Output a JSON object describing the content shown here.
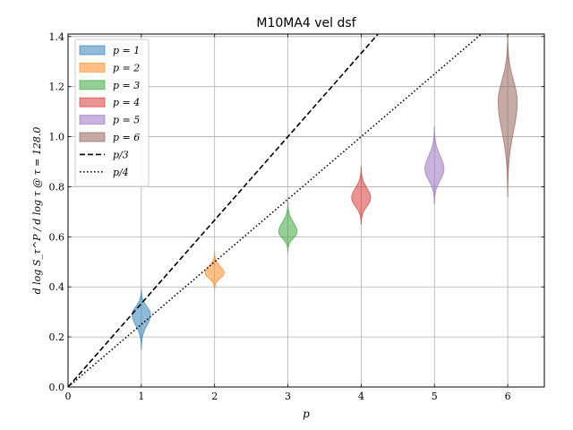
{
  "chart_data": {
    "type": "violin",
    "title": "M10MA4 vel dsf",
    "xlabel": "p",
    "ylabel": "d log S_τ^P / d log τ @ τ = 128.0",
    "xlim": [
      0,
      6.5
    ],
    "ylim": [
      0,
      1.41
    ],
    "xticks": [
      "0",
      "1",
      "2",
      "3",
      "4",
      "5",
      "6"
    ],
    "yticks": [
      "0.0",
      "0.2",
      "0.4",
      "0.6",
      "0.8",
      "1.0",
      "1.2",
      "1.4"
    ],
    "grid": true,
    "legend_position": "top-left",
    "series": [
      {
        "name": "p = 1",
        "x": 1,
        "center": 0.29,
        "min": 0.15,
        "max": 0.39,
        "width": 0.25,
        "color": "#1f77b4"
      },
      {
        "name": "p = 2",
        "x": 2,
        "center": 0.455,
        "min": 0.39,
        "max": 0.54,
        "width": 0.26,
        "color": "#ff7f0e"
      },
      {
        "name": "p = 3",
        "x": 3,
        "center": 0.62,
        "min": 0.54,
        "max": 0.74,
        "width": 0.25,
        "color": "#2ca02c"
      },
      {
        "name": "p = 4",
        "x": 4,
        "center": 0.755,
        "min": 0.65,
        "max": 0.88,
        "width": 0.26,
        "color": "#d62728"
      },
      {
        "name": "p = 5",
        "x": 5,
        "center": 0.87,
        "min": 0.73,
        "max": 1.04,
        "width": 0.26,
        "color": "#9467bd"
      },
      {
        "name": "p = 6",
        "x": 6,
        "center": 1.14,
        "min": 0.76,
        "max": 1.41,
        "width": 0.26,
        "color": "#8c564b"
      }
    ],
    "reference_lines": [
      {
        "name": "p/3",
        "slope": 0.3333,
        "style": "dashed",
        "color": "#000000"
      },
      {
        "name": "p/4",
        "slope": 0.25,
        "style": "dotted",
        "color": "#000000"
      }
    ]
  },
  "legend": {
    "items": [
      "p = 1",
      "p = 2",
      "p = 3",
      "p = 4",
      "p = 5",
      "p = 6",
      "p/3",
      "p/4"
    ]
  }
}
